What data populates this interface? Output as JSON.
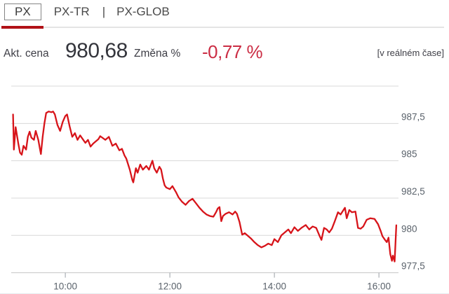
{
  "header": {
    "tabs": [
      {
        "label": "PX",
        "active": true
      },
      {
        "label": "PX-TR",
        "active": false
      },
      {
        "label": "PX-GLOB",
        "active": false
      }
    ],
    "divider": "|"
  },
  "quote": {
    "price_label": "Akt. cena",
    "price_value": "980,68",
    "change_label": "Změna %",
    "change_value": "-0,77 %",
    "realtime_note": "[v reálném čase]"
  },
  "colors": {
    "line_red": "#d7141a",
    "change_red": "#cb2d44",
    "active_tab_bar": "#b11117",
    "gridline": "#d8d8d8",
    "axis_text": "#5a626b"
  },
  "chart_data": {
    "type": "line",
    "title": "",
    "xlabel": "",
    "ylabel": "",
    "grid": true,
    "legend": false,
    "x_range": [
      "08:58",
      "16:22"
    ],
    "ylim": [
      977.5,
      990
    ],
    "y_gridlines": [
      990,
      987.5,
      985,
      982.5,
      980,
      977.5
    ],
    "y_axis": [
      {
        "v": 987.5,
        "label": "987,5"
      },
      {
        "v": 985,
        "label": "985"
      },
      {
        "v": 982.5,
        "label": "982,5"
      },
      {
        "v": 980,
        "label": "980"
      },
      {
        "v": 977.5,
        "label": "977,5"
      }
    ],
    "x_ticks": [
      "10:00",
      "12:00",
      "14:00",
      "16:00"
    ],
    "series": [
      {
        "name": "PX",
        "color": "#d7141a",
        "points": [
          [
            "09:00",
            988.1
          ],
          [
            "09:01",
            985.75
          ],
          [
            "09:03",
            987.25
          ],
          [
            "09:06",
            986.15
          ],
          [
            "09:08",
            985.55
          ],
          [
            "09:10",
            985.4
          ],
          [
            "09:12",
            986.0
          ],
          [
            "09:15",
            985.75
          ],
          [
            "09:17",
            986.6
          ],
          [
            "09:19",
            986.95
          ],
          [
            "09:21",
            986.55
          ],
          [
            "09:24",
            986.4
          ],
          [
            "09:26",
            987.0
          ],
          [
            "09:29",
            986.4
          ],
          [
            "09:31",
            985.75
          ],
          [
            "09:32",
            985.45
          ],
          [
            "09:34",
            986.6
          ],
          [
            "09:36",
            987.5
          ],
          [
            "09:38",
            988.2
          ],
          [
            "09:41",
            988.3
          ],
          [
            "09:44",
            988.25
          ],
          [
            "09:46",
            988.3
          ],
          [
            "09:48",
            988.1
          ],
          [
            "09:51",
            987.4
          ],
          [
            "09:54",
            987.0
          ],
          [
            "09:57",
            987.6
          ],
          [
            "10:00",
            988.0
          ],
          [
            "10:02",
            988.1
          ],
          [
            "10:05",
            987.3
          ],
          [
            "10:08",
            986.6
          ],
          [
            "10:11",
            986.85
          ],
          [
            "10:14",
            986.4
          ],
          [
            "10:17",
            986.7
          ],
          [
            "10:20",
            986.45
          ],
          [
            "10:23",
            986.2
          ],
          [
            "10:26",
            986.4
          ],
          [
            "10:29",
            985.95
          ],
          [
            "10:32",
            986.15
          ],
          [
            "10:35",
            986.3
          ],
          [
            "10:38",
            986.45
          ],
          [
            "10:40",
            986.65
          ],
          [
            "10:46",
            986.4
          ],
          [
            "10:50",
            986.6
          ],
          [
            "10:54",
            986.0
          ],
          [
            "10:58",
            986.15
          ],
          [
            "11:02",
            985.7
          ],
          [
            "11:05",
            985.8
          ],
          [
            "11:08",
            985.35
          ],
          [
            "11:10",
            985.15
          ],
          [
            "11:14",
            984.4
          ],
          [
            "11:17",
            983.7
          ],
          [
            "11:18",
            983.55
          ],
          [
            "11:21",
            984.5
          ],
          [
            "11:23",
            984.2
          ],
          [
            "11:26",
            984.75
          ],
          [
            "11:29",
            984.4
          ],
          [
            "11:33",
            984.65
          ],
          [
            "11:36",
            984.4
          ],
          [
            "11:40",
            985.0
          ],
          [
            "11:42",
            984.5
          ],
          [
            "11:45",
            984.2
          ],
          [
            "11:48",
            984.6
          ],
          [
            "11:50",
            984.4
          ],
          [
            "11:52",
            983.8
          ],
          [
            "11:54",
            983.35
          ],
          [
            "11:56",
            983.2
          ],
          [
            "12:00",
            983.1
          ],
          [
            "12:03",
            983.3
          ],
          [
            "12:07",
            982.9
          ],
          [
            "12:10",
            982.55
          ],
          [
            "12:14",
            982.25
          ],
          [
            "12:18",
            982.05
          ],
          [
            "12:22",
            982.3
          ],
          [
            "12:26",
            982.45
          ],
          [
            "12:30",
            982.15
          ],
          [
            "12:34",
            981.85
          ],
          [
            "12:38",
            981.6
          ],
          [
            "12:42",
            981.4
          ],
          [
            "12:46",
            981.3
          ],
          [
            "12:50",
            981.25
          ],
          [
            "12:53",
            981.55
          ],
          [
            "12:55",
            981.8
          ],
          [
            "12:57",
            981.9
          ],
          [
            "12:59",
            980.95
          ],
          [
            "13:01",
            981.3
          ],
          [
            "13:04",
            981.45
          ],
          [
            "13:08",
            981.55
          ],
          [
            "13:12",
            981.4
          ],
          [
            "13:15",
            981.6
          ],
          [
            "13:17",
            981.45
          ],
          [
            "13:20",
            980.9
          ],
          [
            "13:23",
            980.05
          ],
          [
            "13:26",
            980.15
          ],
          [
            "13:29",
            980.0
          ],
          [
            "13:33",
            979.8
          ],
          [
            "13:37",
            979.55
          ],
          [
            "13:41",
            979.35
          ],
          [
            "13:45",
            979.2
          ],
          [
            "13:49",
            979.3
          ],
          [
            "13:53",
            979.45
          ],
          [
            "13:57",
            979.35
          ],
          [
            "14:00",
            979.75
          ],
          [
            "14:04",
            979.55
          ],
          [
            "14:08",
            980.0
          ],
          [
            "14:12",
            980.2
          ],
          [
            "14:16",
            980.4
          ],
          [
            "14:19",
            980.15
          ],
          [
            "14:23",
            980.55
          ],
          [
            "14:27",
            980.3
          ],
          [
            "14:31",
            980.5
          ],
          [
            "14:36",
            980.7
          ],
          [
            "14:40",
            980.4
          ],
          [
            "14:44",
            980.6
          ],
          [
            "14:48",
            980.5
          ],
          [
            "14:52",
            979.95
          ],
          [
            "14:54",
            979.7
          ],
          [
            "14:57",
            980.5
          ],
          [
            "15:00",
            980.4
          ],
          [
            "15:03",
            980.2
          ],
          [
            "15:06",
            980.45
          ],
          [
            "15:09",
            980.9
          ],
          [
            "15:13",
            981.55
          ],
          [
            "15:16",
            981.4
          ],
          [
            "15:21",
            981.85
          ],
          [
            "15:23",
            981.15
          ],
          [
            "15:26",
            981.7
          ],
          [
            "15:29",
            981.55
          ],
          [
            "15:33",
            981.6
          ],
          [
            "15:36",
            980.5
          ],
          [
            "15:39",
            980.45
          ],
          [
            "15:42",
            980.6
          ],
          [
            "15:46",
            981.05
          ],
          [
            "15:50",
            981.15
          ],
          [
            "15:55",
            981.1
          ],
          [
            "15:59",
            980.75
          ],
          [
            "16:02",
            980.3
          ],
          [
            "16:04",
            979.95
          ],
          [
            "16:07",
            979.7
          ],
          [
            "16:09",
            979.55
          ],
          [
            "16:11",
            979.85
          ],
          [
            "16:13",
            978.75
          ],
          [
            "16:15",
            978.3
          ],
          [
            "16:16",
            978.65
          ],
          [
            "16:18",
            978.25
          ],
          [
            "16:20",
            980.68
          ]
        ]
      }
    ]
  }
}
